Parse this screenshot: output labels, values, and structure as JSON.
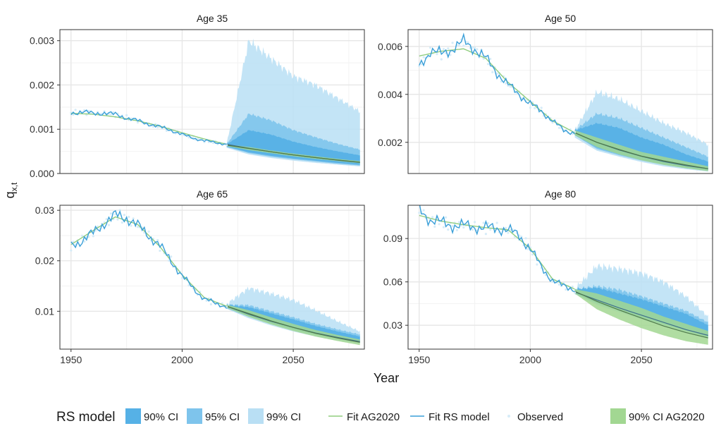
{
  "chart_data": {
    "type": "line",
    "xlabel": "Year",
    "ylabel": "q",
    "ylabel_sub": "x,t",
    "xlim": [
      1945,
      2082
    ],
    "x_ticks": [
      1950,
      2000,
      2050
    ],
    "grid": true,
    "legend_position": "bottom",
    "legend": {
      "title": "RS model",
      "items": [
        {
          "key": "rs90",
          "label": "90% CI",
          "kind": "fill",
          "color": "#56b1e6"
        },
        {
          "key": "rs95",
          "label": "95% CI",
          "kind": "fill",
          "color": "#7ec4ec"
        },
        {
          "key": "rs99",
          "label": "99% CI",
          "kind": "fill",
          "color": "#b9dff4"
        },
        {
          "key": "fit_ag",
          "label": "Fit AG2020",
          "kind": "line",
          "color": "#90cd7f"
        },
        {
          "key": "fit_rs",
          "label": "Fit RS model",
          "kind": "line",
          "color": "#3a9fd8"
        },
        {
          "key": "obs",
          "label": "Observed",
          "kind": "point",
          "color": "#d6ecf8"
        },
        {
          "key": "ag90",
          "label": "90% CI AG2020",
          "kind": "fill",
          "color": "#a2d792"
        }
      ]
    },
    "panels": [
      {
        "title": "Age 35",
        "ylim": [
          0,
          0.00325
        ],
        "y_ticks": [
          0.0,
          0.001,
          0.002,
          0.003
        ],
        "y_tick_labels": [
          "0.000",
          "0.001",
          "0.002",
          "0.003"
        ],
        "historical": [
          [
            1950,
            0.00136
          ],
          [
            1955,
            0.0014
          ],
          [
            1960,
            0.00135
          ],
          [
            1965,
            0.00137
          ],
          [
            1970,
            0.00133
          ],
          [
            1975,
            0.00126
          ],
          [
            1980,
            0.00119
          ],
          [
            1985,
            0.00112
          ],
          [
            1990,
            0.00105
          ],
          [
            1995,
            0.00098
          ],
          [
            2000,
            0.00088
          ],
          [
            2005,
            0.0008
          ],
          [
            2010,
            0.00074
          ],
          [
            2015,
            0.0007
          ],
          [
            2020,
            0.00066
          ]
        ],
        "fit_ag": [
          [
            1950,
            0.00136
          ],
          [
            1960,
            0.00134
          ],
          [
            1970,
            0.00128
          ],
          [
            1980,
            0.00119
          ],
          [
            1990,
            0.00107
          ],
          [
            2000,
            0.00092
          ],
          [
            2010,
            0.00078
          ],
          [
            2020,
            0.00066
          ]
        ],
        "forecast": {
          "years": [
            2020,
            2030,
            2040,
            2050,
            2060,
            2070,
            2080
          ],
          "median": [
            0.00066,
            0.00057,
            0.00049,
            0.00042,
            0.00036,
            0.0003,
            0.00025
          ],
          "rs99": [
            [
              0.00058,
              0.00066
            ],
            [
              0.00043,
              0.003
            ],
            [
              0.00035,
              0.0026
            ],
            [
              0.00029,
              0.0022
            ],
            [
              0.00024,
              0.002
            ],
            [
              0.0002,
              0.0017
            ],
            [
              0.00016,
              0.0014
            ]
          ],
          "rs95": [
            [
              0.0006,
              0.00066
            ],
            [
              0.00046,
              0.00135
            ],
            [
              0.00038,
              0.0012
            ],
            [
              0.00032,
              0.00098
            ],
            [
              0.00027,
              0.00082
            ],
            [
              0.00022,
              0.00067
            ],
            [
              0.00018,
              0.00054
            ]
          ],
          "rs90": [
            [
              0.00061,
              0.00066
            ],
            [
              0.00048,
              0.00098
            ],
            [
              0.0004,
              0.00088
            ],
            [
              0.00034,
              0.00072
            ],
            [
              0.00029,
              0.0006
            ],
            [
              0.00024,
              0.0005
            ],
            [
              0.0002,
              0.00041
            ]
          ],
          "ag90": [
            [
              0.00062,
              0.00066
            ],
            [
              0.00053,
              0.0006
            ],
            [
              0.00046,
              0.00052
            ],
            [
              0.00039,
              0.00045
            ],
            [
              0.00033,
              0.00039
            ],
            [
              0.00028,
              0.00033
            ],
            [
              0.00023,
              0.00028
            ]
          ]
        }
      },
      {
        "title": "Age 50",
        "ylim": [
          0.0007,
          0.0067
        ],
        "y_ticks": [
          0.002,
          0.004,
          0.006
        ],
        "y_tick_labels": [
          "0.002",
          "0.004",
          "0.006"
        ],
        "historical": [
          [
            1950,
            0.0052
          ],
          [
            1955,
            0.0058
          ],
          [
            1960,
            0.0057
          ],
          [
            1965,
            0.0059
          ],
          [
            1970,
            0.0062
          ],
          [
            1975,
            0.0059
          ],
          [
            1980,
            0.0055
          ],
          [
            1985,
            0.0049
          ],
          [
            1990,
            0.0044
          ],
          [
            1995,
            0.004
          ],
          [
            2000,
            0.0036
          ],
          [
            2005,
            0.0033
          ],
          [
            2010,
            0.0029
          ],
          [
            2015,
            0.0025
          ],
          [
            2020,
            0.0024
          ]
        ],
        "fit_ag": [
          [
            1950,
            0.0056
          ],
          [
            1960,
            0.0058
          ],
          [
            1970,
            0.0059
          ],
          [
            1980,
            0.0055
          ],
          [
            1990,
            0.0045
          ],
          [
            2000,
            0.0037
          ],
          [
            2010,
            0.0029
          ],
          [
            2020,
            0.0024
          ]
        ],
        "forecast": {
          "years": [
            2020,
            2030,
            2040,
            2050,
            2060,
            2070,
            2080
          ],
          "median": [
            0.0024,
            0.002,
            0.00168,
            0.00142,
            0.0012,
            0.00103,
            0.0009
          ],
          "rs99": [
            [
              0.0022,
              0.0025
            ],
            [
              0.00165,
              0.0041
            ],
            [
              0.0014,
              0.0038
            ],
            [
              0.00118,
              0.0033
            ],
            [
              0.001,
              0.0028
            ],
            [
              0.00088,
              0.0024
            ],
            [
              0.00078,
              0.0019
            ]
          ],
          "rs95": [
            [
              0.0023,
              0.0025
            ],
            [
              0.00172,
              0.0032
            ],
            [
              0.00146,
              0.003
            ],
            [
              0.00124,
              0.0026
            ],
            [
              0.00106,
              0.0022
            ],
            [
              0.00092,
              0.0018
            ],
            [
              0.00082,
              0.0014
            ]
          ],
          "rs90": [
            [
              0.0023,
              0.0025
            ],
            [
              0.00178,
              0.0028
            ],
            [
              0.0015,
              0.0026
            ],
            [
              0.00128,
              0.0022
            ],
            [
              0.0011,
              0.0019
            ],
            [
              0.00095,
              0.0015
            ],
            [
              0.00085,
              0.0012
            ]
          ],
          "ag90": [
            [
              0.0023,
              0.0025
            ],
            [
              0.0018,
              0.0022
            ],
            [
              0.0015,
              0.0019
            ],
            [
              0.00125,
              0.0016
            ],
            [
              0.00106,
              0.0014
            ],
            [
              0.00092,
              0.0012
            ],
            [
              0.0008,
              0.001
            ]
          ]
        }
      },
      {
        "title": "Age 65",
        "ylim": [
          0.0025,
          0.031
        ],
        "y_ticks": [
          0.01,
          0.02,
          0.03
        ],
        "y_tick_labels": [
          "0.01",
          "0.02",
          "0.03"
        ],
        "historical": [
          [
            1950,
            0.023
          ],
          [
            1955,
            0.024
          ],
          [
            1960,
            0.0255
          ],
          [
            1965,
            0.0275
          ],
          [
            1970,
            0.029
          ],
          [
            1975,
            0.0285
          ],
          [
            1980,
            0.027
          ],
          [
            1985,
            0.025
          ],
          [
            1990,
            0.023
          ],
          [
            1995,
            0.02
          ],
          [
            2000,
            0.017
          ],
          [
            2005,
            0.0145
          ],
          [
            2010,
            0.0125
          ],
          [
            2015,
            0.0115
          ],
          [
            2020,
            0.011
          ]
        ],
        "fit_ag": [
          [
            1950,
            0.0232
          ],
          [
            1960,
            0.026
          ],
          [
            1970,
            0.0287
          ],
          [
            1980,
            0.0272
          ],
          [
            1990,
            0.0228
          ],
          [
            2000,
            0.0172
          ],
          [
            2010,
            0.0127
          ],
          [
            2020,
            0.011
          ]
        ],
        "forecast": {
          "years": [
            2020,
            2030,
            2040,
            2050,
            2060,
            2070,
            2080
          ],
          "median": [
            0.011,
            0.0094,
            0.008,
            0.0068,
            0.0057,
            0.0048,
            0.004
          ],
          "rs99": [
            [
              0.0105,
              0.0114
            ],
            [
              0.0086,
              0.0146
            ],
            [
              0.0072,
              0.0135
            ],
            [
              0.006,
              0.0122
            ],
            [
              0.005,
              0.0102
            ],
            [
              0.0042,
              0.008
            ],
            [
              0.0036,
              0.006
            ]
          ],
          "rs95": [
            [
              0.0106,
              0.0113
            ],
            [
              0.0089,
              0.0112
            ],
            [
              0.0075,
              0.01
            ],
            [
              0.0063,
              0.0088
            ],
            [
              0.0053,
              0.0075
            ],
            [
              0.0045,
              0.0064
            ],
            [
              0.0038,
              0.0054
            ]
          ],
          "rs90": [
            [
              0.0107,
              0.0113
            ],
            [
              0.0091,
              0.0108
            ],
            [
              0.0077,
              0.0096
            ],
            [
              0.0065,
              0.0084
            ],
            [
              0.0055,
              0.0071
            ],
            [
              0.0047,
              0.006
            ],
            [
              0.004,
              0.005
            ]
          ],
          "ag90": [
            [
              0.0107,
              0.0113
            ],
            [
              0.0089,
              0.0102
            ],
            [
              0.0074,
              0.0088
            ],
            [
              0.0061,
              0.0075
            ],
            [
              0.005,
              0.0063
            ],
            [
              0.0041,
              0.0053
            ],
            [
              0.0033,
              0.0044
            ]
          ]
        }
      },
      {
        "title": "Age 80",
        "ylim": [
          0.0135,
          0.113
        ],
        "y_ticks": [
          0.03,
          0.06,
          0.09
        ],
        "y_tick_labels": [
          "0.03",
          "0.06",
          "0.09"
        ],
        "historical": [
          [
            1950,
            0.11
          ],
          [
            1955,
            0.103
          ],
          [
            1960,
            0.101
          ],
          [
            1965,
            0.099
          ],
          [
            1970,
            0.099
          ],
          [
            1975,
            0.098
          ],
          [
            1980,
            0.0975
          ],
          [
            1985,
            0.097
          ],
          [
            1990,
            0.096
          ],
          [
            1995,
            0.092
          ],
          [
            2000,
            0.083
          ],
          [
            2005,
            0.07
          ],
          [
            2010,
            0.061
          ],
          [
            2015,
            0.057
          ],
          [
            2020,
            0.055
          ]
        ],
        "fit_ag": [
          [
            1950,
            0.106
          ],
          [
            1960,
            0.102
          ],
          [
            1970,
            0.0995
          ],
          [
            1980,
            0.0975
          ],
          [
            1990,
            0.096
          ],
          [
            2000,
            0.083
          ],
          [
            2010,
            0.062
          ],
          [
            2020,
            0.055
          ]
        ],
        "forecast": {
          "years": [
            2020,
            2030,
            2040,
            2050,
            2060,
            2070,
            2080
          ],
          "median": [
            0.053,
            0.0475,
            0.042,
            0.037,
            0.032,
            0.027,
            0.023
          ],
          "rs99": [
            [
              0.0515,
              0.055
            ],
            [
              0.044,
              0.071
            ],
            [
              0.039,
              0.069
            ],
            [
              0.034,
              0.066
            ],
            [
              0.0295,
              0.06
            ],
            [
              0.025,
              0.05
            ],
            [
              0.0205,
              0.036
            ]
          ],
          "rs95": [
            [
              0.052,
              0.055
            ],
            [
              0.045,
              0.057
            ],
            [
              0.04,
              0.0545
            ],
            [
              0.035,
              0.05
            ],
            [
              0.0305,
              0.045
            ],
            [
              0.026,
              0.04
            ],
            [
              0.0215,
              0.032
            ]
          ],
          "rs90": [
            [
              0.052,
              0.055
            ],
            [
              0.0455,
              0.056
            ],
            [
              0.0405,
              0.052
            ],
            [
              0.0355,
              0.048
            ],
            [
              0.031,
              0.043
            ],
            [
              0.0265,
              0.038
            ],
            [
              0.022,
              0.03
            ]
          ],
          "ag90": [
            [
              0.052,
              0.055
            ],
            [
              0.041,
              0.052
            ],
            [
              0.034,
              0.047
            ],
            [
              0.028,
              0.042
            ],
            [
              0.023,
              0.036
            ],
            [
              0.019,
              0.031
            ],
            [
              0.0165,
              0.026
            ]
          ]
        }
      }
    ]
  }
}
